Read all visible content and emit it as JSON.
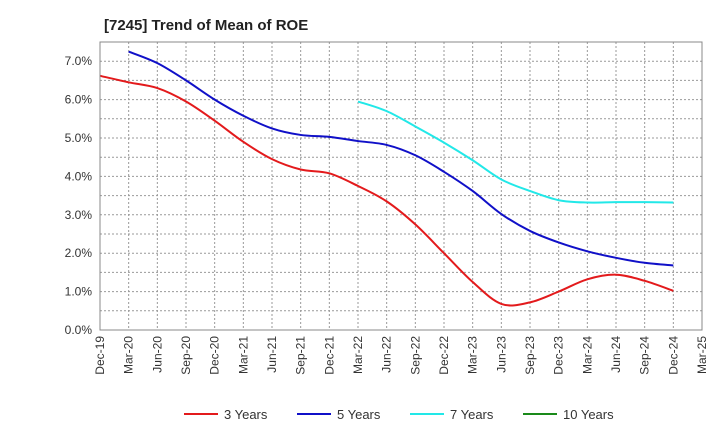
{
  "chart_data": {
    "type": "line",
    "title": "[7245]  Trend of Mean of ROE",
    "xlabel": "",
    "ylabel": "",
    "ylim": [
      0,
      7.5
    ],
    "yticks": [
      "0.0%",
      "1.0%",
      "2.0%",
      "3.0%",
      "4.0%",
      "5.0%",
      "6.0%",
      "7.0%"
    ],
    "categories": [
      "Dec-19",
      "Mar-20",
      "Jun-20",
      "Sep-20",
      "Dec-20",
      "Mar-21",
      "Jun-21",
      "Sep-21",
      "Dec-21",
      "Mar-22",
      "Jun-22",
      "Sep-22",
      "Dec-22",
      "Mar-23",
      "Jun-23",
      "Sep-23",
      "Dec-23",
      "Mar-24",
      "Jun-24",
      "Sep-24",
      "Dec-24",
      "Mar-25"
    ],
    "grid": true,
    "legend_position": "bottom",
    "series": [
      {
        "name": "3 Years",
        "color": "#e31a1c",
        "values": [
          6.62,
          6.45,
          6.3,
          5.95,
          5.45,
          4.9,
          4.45,
          4.18,
          4.08,
          3.75,
          3.35,
          2.75,
          2.0,
          1.25,
          0.68,
          0.72,
          1.0,
          1.32,
          1.44,
          1.28,
          1.02,
          null
        ]
      },
      {
        "name": "5 Years",
        "color": "#1010c8",
        "values": [
          null,
          7.25,
          6.95,
          6.5,
          6.0,
          5.58,
          5.25,
          5.08,
          5.03,
          4.92,
          4.82,
          4.55,
          4.12,
          3.62,
          3.02,
          2.58,
          2.28,
          2.05,
          1.88,
          1.75,
          1.68,
          null
        ]
      },
      {
        "name": "7 Years",
        "color": "#22e8e8",
        "values": [
          null,
          null,
          null,
          null,
          null,
          null,
          null,
          null,
          null,
          5.95,
          5.7,
          5.3,
          4.88,
          4.42,
          3.92,
          3.62,
          3.38,
          3.32,
          3.33,
          3.33,
          3.32,
          null
        ]
      },
      {
        "name": "10 Years",
        "color": "#1a8a1a",
        "values": [
          null,
          null,
          null,
          null,
          null,
          null,
          null,
          null,
          null,
          null,
          null,
          null,
          null,
          null,
          null,
          null,
          null,
          null,
          null,
          null,
          null,
          null
        ]
      }
    ]
  }
}
